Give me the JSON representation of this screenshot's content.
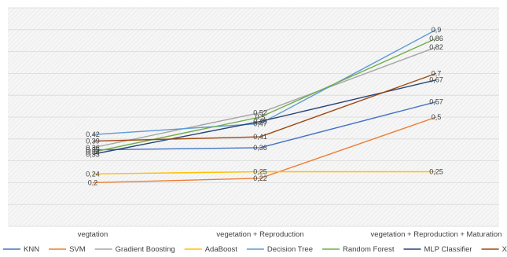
{
  "chart_data": {
    "type": "line",
    "title": "",
    "xlabel": "",
    "ylabel": "",
    "ylim": [
      0,
      1
    ],
    "grid": true,
    "legend_position": "bottom",
    "categories": [
      "vegtation",
      "vegetation + Reproduction",
      "vegetation + Reproduction + Maturation"
    ],
    "series": [
      {
        "name": "KNN",
        "color": "#4472c4",
        "values": [
          0.35,
          0.36,
          0.57
        ],
        "labels": [
          "0,35",
          "0,36",
          "0,57"
        ]
      },
      {
        "name": "SVM",
        "color": "#ed7d31",
        "values": [
          0.2,
          0.22,
          0.5
        ],
        "labels": [
          "0,2",
          "0,22",
          "0,5"
        ]
      },
      {
        "name": "Gradient Boosting",
        "color": "#a5a5a5",
        "values": [
          0.36,
          0.52,
          0.82
        ],
        "labels": [
          "0,36",
          "0,52",
          "0,82"
        ]
      },
      {
        "name": "AdaBoost",
        "color": "#ffc000",
        "values": [
          0.24,
          0.25,
          0.25
        ],
        "labels": [
          "0,24",
          "0,25",
          "0,25"
        ]
      },
      {
        "name": "Decision Tree",
        "color": "#5b9bd5",
        "values": [
          0.42,
          0.47,
          0.9
        ],
        "labels": [
          "0,42",
          "0,47",
          "0,9"
        ]
      },
      {
        "name": "Random Forest",
        "color": "#70ad47",
        "values": [
          0.34,
          0.5,
          0.86
        ],
        "labels": [
          "0,34",
          "0,5",
          "0,86"
        ]
      },
      {
        "name": "MLP Classifier",
        "color": "#264478",
        "values": [
          0.33,
          0.48,
          0.67
        ],
        "labels": [
          "0,33",
          "0,48",
          "0,67"
        ]
      },
      {
        "name": "Xgboost",
        "color": "#9e480e",
        "values": [
          0.39,
          0.41,
          0.7
        ],
        "labels": [
          "0,39",
          "0,41",
          "0,7"
        ]
      }
    ]
  }
}
